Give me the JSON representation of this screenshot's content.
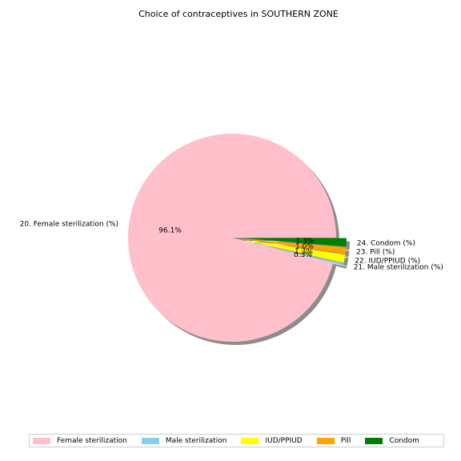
{
  "chart_data": {
    "type": "pie",
    "title": "Choice of contraceptives in SOUTHERN ZONE",
    "slices": [
      {
        "label": "20. Female sterilization (%)",
        "legend": "Female sterilization",
        "value": 96.1,
        "pct_text": "96.1%",
        "color": "#ffc0cb",
        "explode": false
      },
      {
        "label": "21. Male sterilization (%)",
        "legend": "Male sterilization",
        "value": 0.3,
        "pct_text": "0.3%",
        "color": "#87ceeb",
        "explode": true
      },
      {
        "label": "22. IUD/PPIUD (%)",
        "legend": "IUD/PPIUD",
        "value": 1.3,
        "pct_text": "1.3%",
        "color": "#ffff00",
        "explode": true
      },
      {
        "label": "23. Pill (%)",
        "legend": "Pill",
        "value": 1.0,
        "pct_text": "1.0%",
        "color": "#ffa500",
        "explode": true
      },
      {
        "label": "24. Condom (%)",
        "legend": "Condom",
        "value": 1.3,
        "pct_text": "1.3%",
        "color": "#008000",
        "explode": true
      }
    ],
    "legend_position": "bottom",
    "shadow": true
  }
}
